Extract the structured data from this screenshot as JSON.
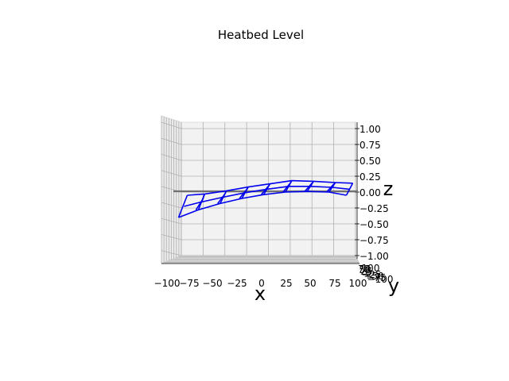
{
  "chart_data": {
    "type": "wireframe",
    "title": "Heatbed Level",
    "xlabel": "x",
    "ylabel": "y",
    "zlabel": "z",
    "xlim": [
      -100,
      100
    ],
    "ylim": [
      -100,
      100
    ],
    "zlim": [
      -1,
      1
    ],
    "x_ticks": [
      "−100",
      "−75",
      "−50",
      "−25",
      "0",
      "25",
      "50",
      "75",
      "100"
    ],
    "y_ticks": [
      "−100",
      "−75",
      "−50",
      "−25",
      "0",
      "25",
      "50",
      "75",
      "100"
    ],
    "z_ticks": [
      "1.00",
      "0.75",
      "0.50",
      "0.25",
      "0.00",
      "−0.25",
      "−0.50",
      "−0.75",
      "−1.00"
    ],
    "grid": true,
    "colors": {
      "mesh": "#0000ee",
      "reference": "#707070",
      "pane": "#f2f2f2",
      "grid": "#b0b0b0"
    },
    "surface_front": {
      "x": [
        -95,
        -75,
        -50,
        -25,
        0,
        25,
        50,
        75,
        95
      ],
      "z": [
        -0.4,
        -0.28,
        -0.18,
        -0.1,
        -0.04,
        0.0,
        0.01,
        0.0,
        -0.05
      ]
    },
    "surface_back": {
      "x": [
        -95,
        -75,
        -50,
        -25,
        0,
        25,
        50,
        75,
        95
      ],
      "z": [
        -0.05,
        -0.03,
        0.02,
        0.08,
        0.13,
        0.18,
        0.17,
        0.15,
        0.14
      ]
    },
    "reference_plane_z": 0.0
  }
}
